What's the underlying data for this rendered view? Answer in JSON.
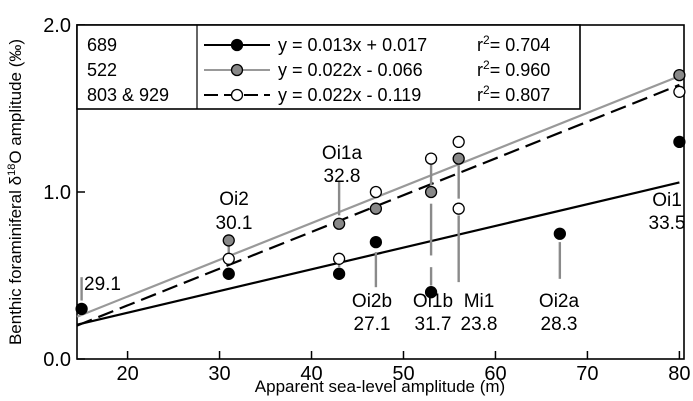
{
  "chart_data": {
    "type": "scatter",
    "x_axis": {
      "label": "Apparent sea-level amplitude (m)",
      "range": [
        14.5,
        80.5
      ],
      "ticks": [
        20,
        30,
        40,
        50,
        60,
        70,
        80
      ]
    },
    "y_axis": {
      "label_prefix": "Benthic foraminiferal δ",
      "label_sup": "18",
      "label_suffix": "O amplitude (‰)",
      "range": [
        0.0,
        2.0
      ],
      "ticks": [
        0.0,
        1.0,
        2.0
      ],
      "tick_labels": [
        "0.0",
        "1.0",
        "2.0"
      ]
    },
    "legend_placement": "top",
    "grid": false,
    "series": [
      {
        "name": "689",
        "marker": "filled-black",
        "equation": "y = 0.013x + 0.017",
        "r2_text": "r",
        "r2_value": "= 0.704",
        "points": [
          [
            15,
            0.3
          ],
          [
            31,
            0.51
          ],
          [
            43,
            0.51
          ],
          [
            47,
            0.7
          ],
          [
            53,
            0.4
          ],
          [
            67,
            0.75
          ],
          [
            80,
            1.3
          ]
        ],
        "fit": {
          "slope": 0.013,
          "intercept": 0.017,
          "style": "solid",
          "color": "#000000"
        }
      },
      {
        "name": "522",
        "marker": "filled-gray",
        "equation": "y = 0.022x - 0.066",
        "r2_text": "r",
        "r2_value": "= 0.960",
        "points": [
          [
            31,
            0.71
          ],
          [
            43,
            0.81
          ],
          [
            47,
            0.9
          ],
          [
            53,
            1.0
          ],
          [
            56,
            1.2
          ],
          [
            80,
            1.7
          ]
        ],
        "fit": {
          "slope": 0.022,
          "intercept": -0.066,
          "style": "solid",
          "color": "#999999"
        }
      },
      {
        "name": "803 & 929",
        "marker": "open",
        "equation": "y = 0.022x - 0.119",
        "r2_text": "r",
        "r2_value": "= 0.807",
        "points": [
          [
            31,
            0.6
          ],
          [
            43,
            0.6
          ],
          [
            47,
            1.0
          ],
          [
            53,
            1.2
          ],
          [
            56,
            1.3
          ],
          [
            56,
            0.9
          ],
          [
            80,
            1.6
          ]
        ],
        "fit": {
          "slope": 0.022,
          "intercept": -0.119,
          "style": "dashed",
          "color": "#000000"
        }
      }
    ],
    "annotations": [
      {
        "event": "",
        "age": "29.1"
      },
      {
        "event": "Oi2",
        "age": "30.1"
      },
      {
        "event": "Oi1a",
        "age": "32.8"
      },
      {
        "event": "Oi2b",
        "age": "27.1"
      },
      {
        "event": "Oi1b",
        "age": "31.7"
      },
      {
        "event": "Mi1",
        "age": "23.8"
      },
      {
        "event": "Oi2a",
        "age": "28.3"
      },
      {
        "event": "Oi1",
        "age": "33.5"
      }
    ]
  }
}
